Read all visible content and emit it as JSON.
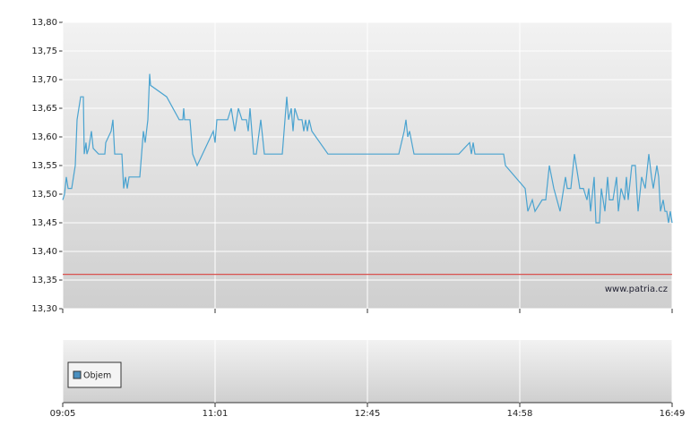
{
  "chart_data": {
    "type": "line",
    "watermark": "www.patria.cz",
    "xlim": [
      0,
      68
    ],
    "xticks": [
      {
        "value": 0,
        "label": "09:05"
      },
      {
        "value": 17,
        "label": "11:01"
      },
      {
        "value": 34,
        "label": "12:45"
      },
      {
        "value": 51,
        "label": "14:58"
      },
      {
        "value": 68,
        "label": "16:49"
      }
    ],
    "ylim": [
      13.3,
      13.8
    ],
    "yticks": [
      {
        "value": 13.3,
        "label": "13,30"
      },
      {
        "value": 13.35,
        "label": "13,35"
      },
      {
        "value": 13.4,
        "label": "13,40"
      },
      {
        "value": 13.45,
        "label": "13,45"
      },
      {
        "value": 13.5,
        "label": "13,50"
      },
      {
        "value": 13.55,
        "label": "13,55"
      },
      {
        "value": 13.6,
        "label": "13,60"
      },
      {
        "value": 13.65,
        "label": "13,65"
      },
      {
        "value": 13.7,
        "label": "13,70"
      },
      {
        "value": 13.75,
        "label": "13,75"
      },
      {
        "value": 13.8,
        "label": "13,80"
      }
    ],
    "grid": true,
    "reference_line": {
      "value": 13.36,
      "color": "#d9534f"
    },
    "volume": {
      "legend": "Objem",
      "color": "#4a90c0"
    },
    "series": [
      {
        "color": "#4aa3d0",
        "x": [
          0,
          0.2,
          0.4,
          0.6,
          1,
          1.4,
          1.6,
          2,
          2.3,
          2.4,
          2.6,
          2.7,
          2.9,
          3.2,
          3.4,
          4,
          4.7,
          4.8,
          5.4,
          5.6,
          5.8,
          6.6,
          6.8,
          7,
          7.2,
          7.4,
          8.6,
          9,
          9.2,
          9.5,
          9.7,
          9.8,
          11.6,
          13,
          13.4,
          13.5,
          13.6,
          14.2,
          14.5,
          15,
          16.8,
          17,
          17.2,
          18.4,
          18.8,
          19.2,
          19.6,
          20,
          20.5,
          20.7,
          20.9,
          21.3,
          21.6,
          22.1,
          22.5,
          24.5,
          25,
          25.2,
          25.5,
          25.7,
          25.9,
          26.3,
          26.7,
          26.9,
          27.1,
          27.3,
          27.5,
          27.8,
          29.6,
          37.5,
          38.1,
          38.3,
          38.5,
          38.7,
          39.2,
          44.2,
          45.4,
          45.6,
          45.8,
          46,
          49.2,
          49.4,
          51.6,
          51.9,
          52.4,
          52.7,
          53.5,
          53.9,
          54.3,
          54.8,
          55.5,
          56.1,
          56.3,
          56.7,
          57.1,
          57.3,
          57.7,
          58.1,
          58.5,
          58.7,
          58.9,
          59.3,
          59.5,
          59.9,
          60.1,
          60.5,
          60.8,
          61,
          61.4,
          61.8,
          62,
          62.3,
          62.7,
          62.9,
          63.1,
          63.5,
          63.9,
          64.2,
          64.6,
          65,
          65.4,
          65.7,
          65.9,
          66.3,
          66.5,
          66.7,
          67,
          67.2,
          67.4,
          67.6,
          67.8,
          68
        ],
        "values": [
          13.49,
          13.5,
          13.53,
          13.51,
          13.51,
          13.55,
          13.63,
          13.67,
          13.67,
          13.57,
          13.59,
          13.57,
          13.58,
          13.61,
          13.58,
          13.57,
          13.57,
          13.59,
          13.61,
          13.63,
          13.57,
          13.57,
          13.51,
          13.53,
          13.51,
          13.53,
          13.53,
          13.61,
          13.59,
          13.63,
          13.71,
          13.69,
          13.67,
          13.63,
          13.63,
          13.65,
          13.63,
          13.63,
          13.57,
          13.55,
          13.61,
          13.59,
          13.63,
          13.63,
          13.65,
          13.61,
          13.65,
          13.63,
          13.63,
          13.61,
          13.65,
          13.57,
          13.57,
          13.63,
          13.57,
          13.57,
          13.67,
          13.63,
          13.65,
          13.61,
          13.65,
          13.63,
          13.63,
          13.61,
          13.63,
          13.61,
          13.63,
          13.61,
          13.57,
          13.57,
          13.61,
          13.63,
          13.6,
          13.61,
          13.57,
          13.57,
          13.59,
          13.57,
          13.59,
          13.57,
          13.57,
          13.55,
          13.51,
          13.47,
          13.49,
          13.47,
          13.49,
          13.49,
          13.55,
          13.51,
          13.47,
          13.53,
          13.51,
          13.51,
          13.57,
          13.55,
          13.51,
          13.51,
          13.49,
          13.51,
          13.47,
          13.53,
          13.45,
          13.45,
          13.51,
          13.47,
          13.53,
          13.49,
          13.49,
          13.53,
          13.47,
          13.51,
          13.49,
          13.53,
          13.49,
          13.55,
          13.55,
          13.47,
          13.53,
          13.51,
          13.57,
          13.53,
          13.51,
          13.55,
          13.53,
          13.47,
          13.49,
          13.47,
          13.47,
          13.45,
          13.47,
          13.45
        ]
      }
    ]
  }
}
